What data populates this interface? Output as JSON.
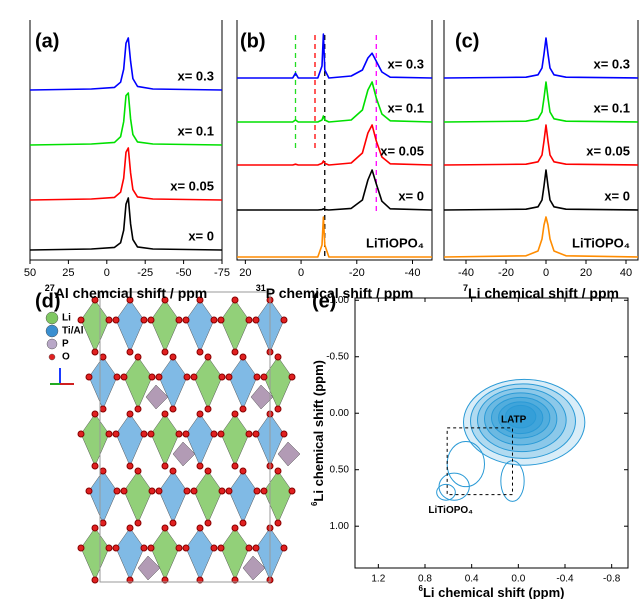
{
  "chart_data": [
    {
      "type": "line",
      "label": "(a)",
      "xlabel_sup": "27",
      "xlabel": "Al chemcial shift / ppm",
      "xlim": [
        50,
        -75
      ],
      "xticks": [
        50,
        25,
        0,
        -25,
        -50,
        -75
      ],
      "x": [
        50,
        10,
        -5,
        -9,
        -11,
        -12.5,
        -14,
        -15.5,
        -17,
        -20,
        -30,
        -75
      ],
      "series": [
        {
          "name": "x= 0.3",
          "color": "#0000ff",
          "values": [
            0,
            0.02,
            0.05,
            0.15,
            0.4,
            0.9,
            1,
            0.55,
            0.22,
            0.07,
            0.02,
            0
          ]
        },
        {
          "name": "x= 0.1",
          "color": "#00e000",
          "values": [
            0,
            0.02,
            0.05,
            0.16,
            0.45,
            0.95,
            1,
            0.5,
            0.2,
            0.06,
            0.02,
            0
          ]
        },
        {
          "name": "x= 0.05",
          "color": "#ff0000",
          "values": [
            0,
            0.02,
            0.05,
            0.15,
            0.42,
            0.92,
            1,
            0.52,
            0.2,
            0.06,
            0.02,
            0
          ]
        },
        {
          "name": "x= 0",
          "color": "#000000",
          "values": [
            0,
            0.02,
            0.05,
            0.14,
            0.38,
            0.88,
            1,
            0.5,
            0.2,
            0.06,
            0.02,
            0
          ]
        }
      ]
    },
    {
      "type": "line",
      "label": "(b)",
      "xlabel_sup": "31",
      "xlabel": "P chemical shift / ppm",
      "xlim": [
        23,
        -47
      ],
      "xticks": [
        20,
        0,
        -20,
        -40
      ],
      "x": [
        23,
        3,
        2,
        1,
        -6,
        -7.5,
        -8,
        -8.5,
        -10,
        -18,
        -22,
        -24,
        -25.5,
        -27,
        -29,
        -32,
        -47
      ],
      "series": [
        {
          "name": "x= 0.3",
          "color": "#0000ff",
          "values": [
            0,
            0,
            0.12,
            0,
            0,
            0.3,
            1.1,
            0.2,
            0,
            0.05,
            0.2,
            0.5,
            0.62,
            0.42,
            0.15,
            0.02,
            0
          ]
        },
        {
          "name": "x= 0.1",
          "color": "#00e000",
          "values": [
            0,
            0,
            0.05,
            0,
            0,
            0.05,
            0.15,
            0.05,
            0,
            0.05,
            0.3,
            0.8,
            1,
            0.6,
            0.2,
            0.03,
            0
          ]
        },
        {
          "name": "x= 0.05",
          "color": "#ff0000",
          "values": [
            0,
            0,
            0.02,
            0,
            0,
            0.04,
            0.1,
            0.04,
            0,
            0.05,
            0.3,
            0.8,
            1,
            0.6,
            0.2,
            0.03,
            0
          ]
        },
        {
          "name": "x= 0",
          "color": "#000000",
          "values": [
            0,
            0,
            0,
            0,
            0,
            0.01,
            0.03,
            0.01,
            0,
            0.04,
            0.25,
            0.75,
            1,
            0.65,
            0.22,
            0.03,
            0
          ]
        },
        {
          "name": "LiTiOPO₄",
          "color": "#ff8c00",
          "values": [
            0,
            0,
            0,
            0,
            0,
            0.3,
            1,
            0.3,
            0,
            0,
            0,
            0,
            0,
            0,
            0,
            0,
            0
          ]
        }
      ],
      "guides": [
        {
          "x": 2,
          "color": "#22dd22"
        },
        {
          "x": -5,
          "color": "#ff0000"
        },
        {
          "x": -8.5,
          "color": "#000000"
        },
        {
          "x": -27,
          "color": "#ff00ff"
        }
      ]
    },
    {
      "type": "line",
      "label": "(c)",
      "xlabel_sup": "7",
      "xlabel": "Li chemical shift / ppm",
      "xlim": [
        -51,
        46
      ],
      "xticks": [
        -40,
        -20,
        0,
        20,
        40
      ],
      "x": [
        -51,
        -10,
        -4,
        -2,
        -1,
        0,
        1,
        2,
        4,
        10,
        46
      ],
      "series": [
        {
          "name": "x= 0.3",
          "color": "#0000ff",
          "values": [
            0,
            0.02,
            0.08,
            0.25,
            0.6,
            1,
            0.6,
            0.25,
            0.08,
            0.02,
            0
          ]
        },
        {
          "name": "x= 0.1",
          "color": "#00e000",
          "values": [
            0,
            0.02,
            0.08,
            0.25,
            0.6,
            1,
            0.6,
            0.25,
            0.08,
            0.02,
            0
          ]
        },
        {
          "name": "x= 0.05",
          "color": "#ff0000",
          "values": [
            0,
            0.02,
            0.08,
            0.25,
            0.6,
            1,
            0.6,
            0.25,
            0.08,
            0.02,
            0
          ]
        },
        {
          "name": "x= 0",
          "color": "#000000",
          "values": [
            0,
            0.02,
            0.08,
            0.25,
            0.6,
            1,
            0.6,
            0.25,
            0.08,
            0.02,
            0
          ]
        },
        {
          "name": "LiTiOPO₄",
          "color": "#ff8c00",
          "values": [
            0,
            0.03,
            0.15,
            0.45,
            0.8,
            1,
            0.8,
            0.45,
            0.15,
            0.03,
            0
          ]
        }
      ]
    },
    {
      "type": "contour",
      "label": "(e)",
      "xlabel_sup": "6",
      "xlabel": "Li chemical shift (ppm)",
      "ylabel_sup": "6",
      "ylabel": "Li chemical shift (ppm)",
      "xlim": [
        1.4,
        -0.94
      ],
      "xticks": [
        1.2,
        0.8,
        0.4,
        {
          "value": 0,
          "label": "0.0"
        },
        -0.4,
        -0.8
      ],
      "ylim": [
        -1.02,
        1.37
      ],
      "yticks": [
        {
          "value": -1,
          "label": "-1.00"
        },
        {
          "value": -0.5,
          "label": "-0.50"
        },
        {
          "value": 0,
          "label": "0.00"
        },
        {
          "value": 0.5,
          "label": "0.50"
        },
        {
          "value": 1,
          "label": "1.00"
        }
      ],
      "color": "#2a9ad6",
      "contours": [
        {
          "x": -0.05,
          "y": 0.08,
          "rx": 0.52,
          "ry": 0.38
        },
        {
          "x": -0.04,
          "y": 0.07,
          "rx": 0.45,
          "ry": 0.33
        },
        {
          "x": -0.03,
          "y": 0.06,
          "rx": 0.38,
          "ry": 0.28
        },
        {
          "x": -0.02,
          "y": 0.05,
          "rx": 0.31,
          "ry": 0.23
        },
        {
          "x": -0.02,
          "y": 0.04,
          "rx": 0.25,
          "ry": 0.18
        },
        {
          "x": -0.02,
          "y": 0.04,
          "rx": 0.19,
          "ry": 0.14
        },
        {
          "x": -0.02,
          "y": 0.03,
          "rx": 0.13,
          "ry": 0.1
        },
        {
          "x": 0.45,
          "y": 0.45,
          "rx": 0.16,
          "ry": 0.2
        },
        {
          "x": 0.55,
          "y": 0.65,
          "rx": 0.13,
          "ry": 0.12
        },
        {
          "x": 0.62,
          "y": 0.7,
          "rx": 0.08,
          "ry": 0.07
        },
        {
          "x": 0.05,
          "y": 0.6,
          "rx": 0.1,
          "ry": 0.18
        }
      ],
      "box": {
        "x": [
          0.61,
          0.05
        ],
        "y": [
          0.13,
          0.72
        ]
      },
      "annotations": [
        {
          "text": "LATP",
          "x": 0.04,
          "y": 0.06
        },
        {
          "text": "LiTiOPO₄",
          "x": 0.58,
          "y": 0.86
        }
      ]
    }
  ],
  "structure": {
    "label": "(d)",
    "legend": [
      "Li",
      "Ti/Al",
      "P",
      "O"
    ]
  }
}
